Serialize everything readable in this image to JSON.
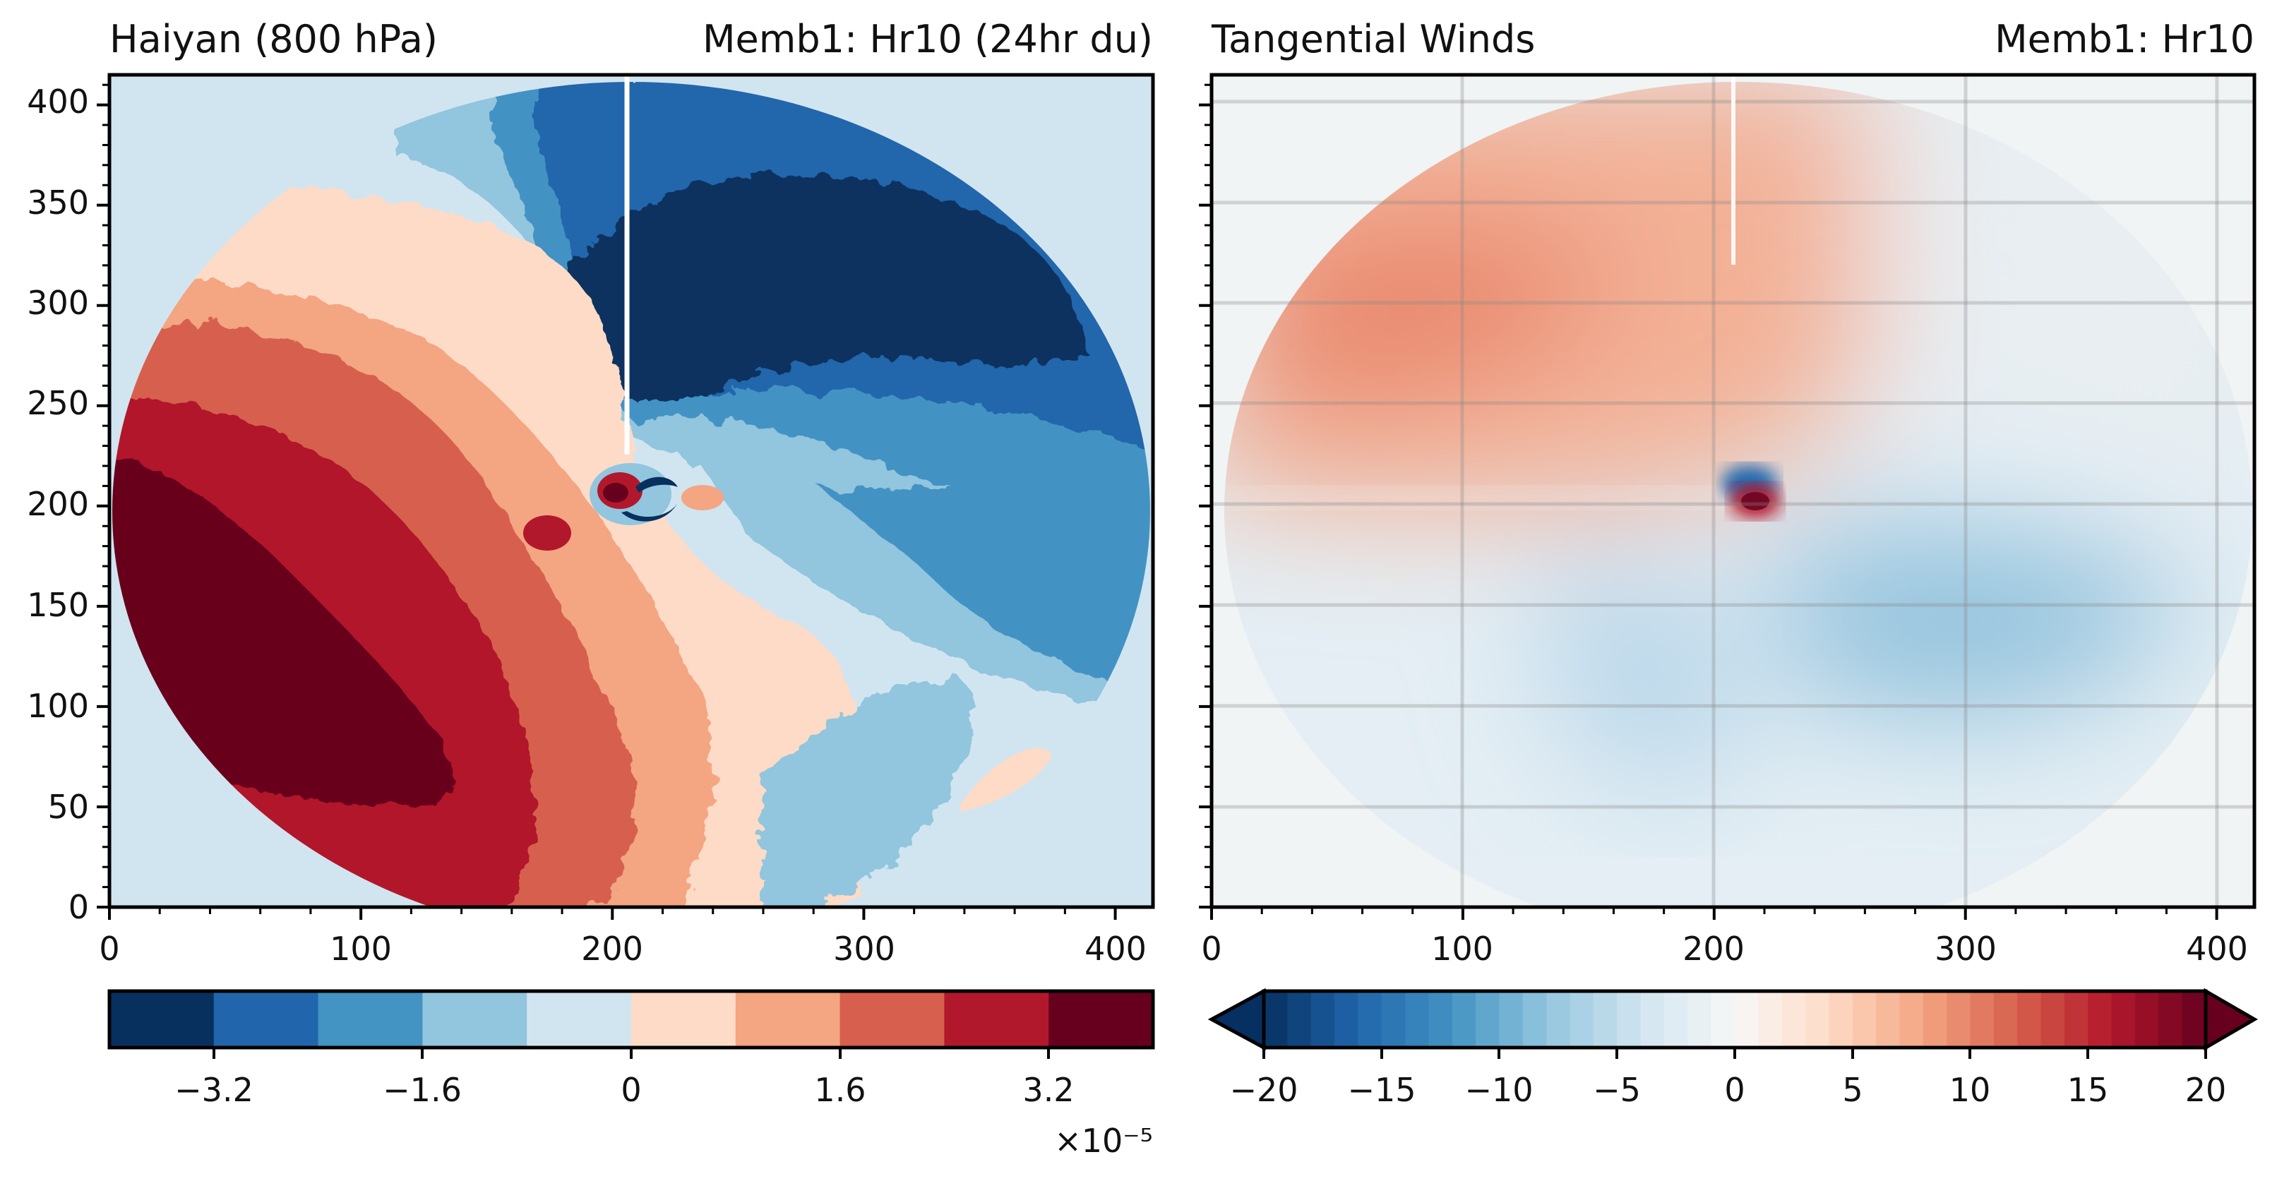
{
  "chart_data": [
    {
      "type": "heatmap",
      "title_left": "Haiyan (800 hPa)",
      "title_right": "Memb1: Hr10 (24hr du)",
      "xlim": [
        0,
        415
      ],
      "ylim": [
        0,
        415
      ],
      "xticks": [
        "0",
        "100",
        "200",
        "300",
        "400"
      ],
      "yticks": [
        "0",
        "50",
        "100",
        "150",
        "200",
        "250",
        "300",
        "350",
        "400"
      ],
      "colorbar": {
        "range": [
          -4.0,
          4.0
        ],
        "levels": 10,
        "ticks": [
          "−3.2",
          "−1.6",
          "0",
          "1.6",
          "3.2"
        ],
        "multiplier": "×10⁻⁵",
        "colors": [
          "#08305e",
          "#2166ac",
          "#4393c3",
          "#92c5de",
          "#d1e5f0",
          "#fddbc7",
          "#f4a582",
          "#d6604d",
          "#b2182b",
          "#67001f"
        ]
      }
    },
    {
      "type": "heatmap",
      "title_left": "Tangential Winds",
      "title_right": "Memb1: Hr10",
      "xlim": [
        0,
        415
      ],
      "ylim": [
        0,
        415
      ],
      "xticks": [
        "0",
        "100",
        "200",
        "300",
        "400"
      ],
      "grid": true,
      "colorbar": {
        "range": [
          -20,
          20
        ],
        "ticks": [
          "−20",
          "−15",
          "−10",
          "−5",
          "0",
          "5",
          "10",
          "15",
          "20"
        ],
        "extend": "both",
        "colors": [
          "#053061",
          "#2166ac",
          "#4393c3",
          "#92c5de",
          "#d1e5f0",
          "#f7f7f7",
          "#fddbc7",
          "#f4a582",
          "#d6604d",
          "#b2182b",
          "#67001f"
        ]
      }
    }
  ]
}
